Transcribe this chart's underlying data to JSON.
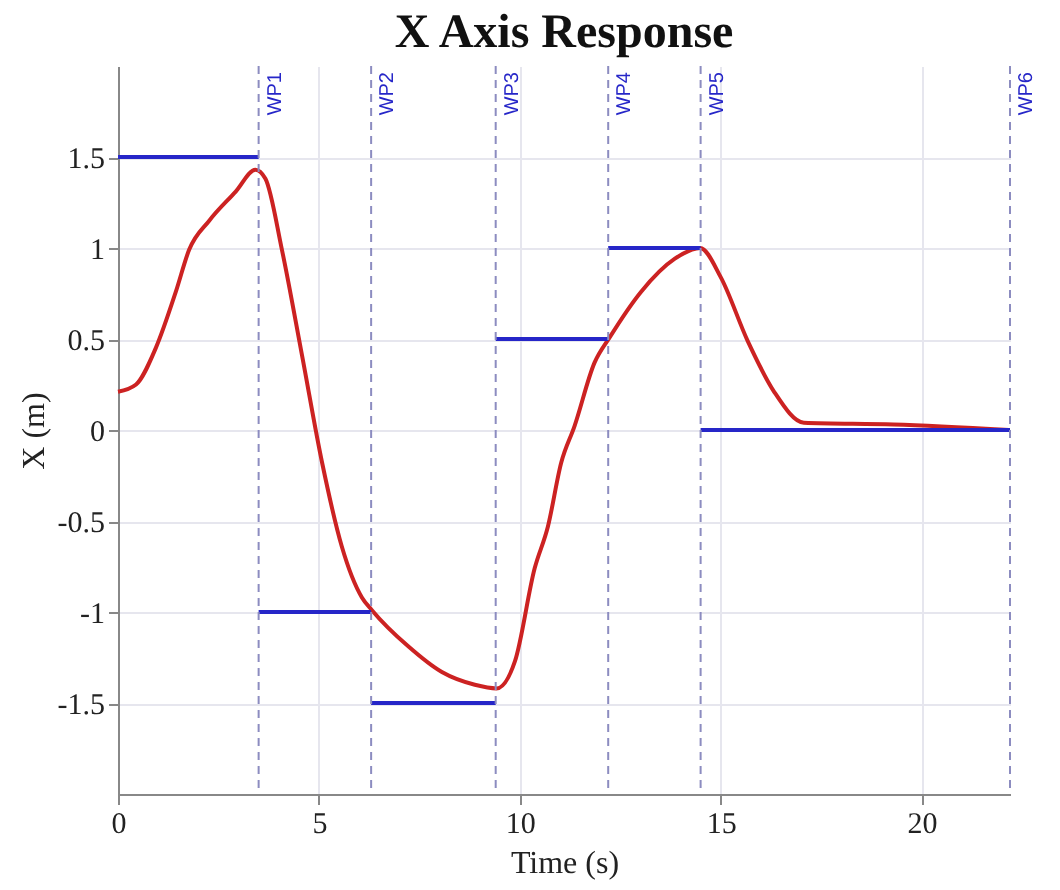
{
  "chart_data": {
    "type": "line",
    "title": "X Axis Response",
    "xlabel": "Time (s)",
    "ylabel": "X  (m)",
    "xlim": [
      0,
      22.2
    ],
    "xticks": [
      0,
      5,
      10,
      15,
      20
    ],
    "ylim": [
      -2,
      2
    ],
    "yticks": [
      -1.5,
      -1,
      -0.5,
      0,
      0.5,
      1,
      1.5
    ],
    "grid": true,
    "line_style": "solid",
    "series": [
      {
        "color": "#cc2222",
        "x": [
          0,
          0.45,
          0.94,
          1.44,
          1.77,
          2.27,
          2.93,
          3.42,
          3.67,
          4.08,
          4.58,
          5.08,
          5.57,
          6.07,
          6.32,
          7.23,
          8.06,
          8.88,
          9.42,
          9.88,
          10.37,
          10.7,
          11.03,
          11.36,
          11.86,
          12.24,
          13.02,
          13.85,
          14.49,
          15.0,
          15.67,
          16.33,
          17.07,
          19.3,
          22.17
        ],
        "values": [
          0.21,
          0.25,
          0.45,
          0.76,
          0.99,
          1.15,
          1.31,
          1.43,
          1.38,
          0.99,
          0.41,
          -0.18,
          -0.64,
          -0.92,
          -0.99,
          -1.19,
          -1.33,
          -1.4,
          -1.42,
          -1.27,
          -0.76,
          -0.53,
          -0.18,
          0.02,
          0.37,
          0.51,
          0.76,
          0.94,
          1.0,
          0.84,
          0.49,
          0.21,
          0.04,
          0.03,
          0.0
        ]
      },
      {
        "color": "#2626c8",
        "x": [
          0,
          3.5,
          null,
          3.5,
          6.3,
          null,
          6.3,
          9.4,
          null,
          9.4,
          12.2,
          null,
          12.2,
          14.5,
          null,
          14.5,
          22.2
        ],
        "values": [
          1.5,
          1.5,
          null,
          -1,
          -1,
          null,
          -1.5,
          -1.5,
          null,
          0.5,
          0.5,
          null,
          1,
          1,
          null,
          0,
          0
        ]
      }
    ],
    "ref_lines": [
      {
        "axis": "x",
        "value": 3.5,
        "label": "WP1",
        "color": "#8c8cc0",
        "line_style": "dashed"
      },
      {
        "axis": "x",
        "value": 6.3,
        "label": "WP2",
        "color": "#8c8cc0",
        "line_style": "dashed"
      },
      {
        "axis": "x",
        "value": 9.4,
        "label": "WP3",
        "color": "#8c8cc0",
        "line_style": "dashed"
      },
      {
        "axis": "x",
        "value": 12.2,
        "label": "WP4",
        "color": "#8c8cc0",
        "line_style": "dashed"
      },
      {
        "axis": "x",
        "value": 14.5,
        "label": "WP5",
        "color": "#8c8cc0",
        "line_style": "dashed"
      },
      {
        "axis": "x",
        "value": 22.2,
        "label": "WP6",
        "color": "#8c8cc0",
        "line_style": "dashed"
      }
    ]
  }
}
